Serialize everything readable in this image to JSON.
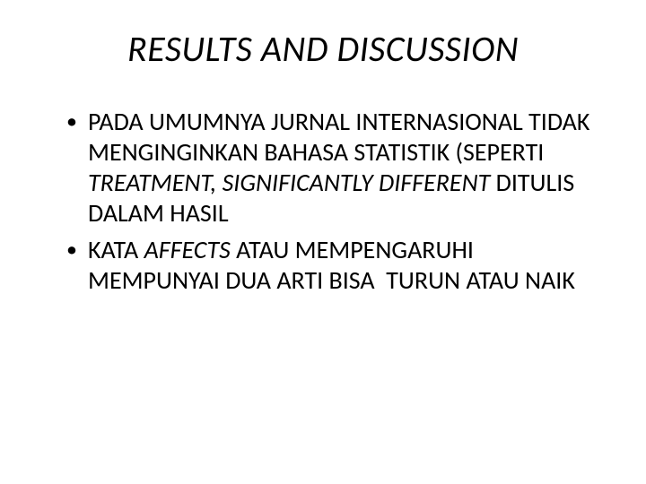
{
  "title": "RESULTS AND DISCUSSION",
  "bullets": [
    {
      "segments": [
        {
          "text": "PADA UMUMNYA JURNAL INTERNASIONAL TIDAK MENGINGINKAN BAHASA STATISTIK (SEPERTI ",
          "italic": false
        },
        {
          "text": "TREATMENT, SIGNIFICANTLY DIFFERENT ",
          "italic": true
        },
        {
          "text": "DITULIS DALAM HASIL",
          "italic": false
        }
      ]
    },
    {
      "segments": [
        {
          "text": "KATA ",
          "italic": false
        },
        {
          "text": "AFFECTS ",
          "italic": true
        },
        {
          "text": "ATAU MEMPENGARUHI MEMPUNYAI DUA ARTI BISA  TURUN ATAU NAIK",
          "italic": false
        }
      ]
    }
  ],
  "colors": {
    "background": "#ffffff",
    "text": "#000000"
  },
  "typography": {
    "title_fontsize": 40,
    "body_fontsize": 28,
    "font_family": "Calibri"
  }
}
